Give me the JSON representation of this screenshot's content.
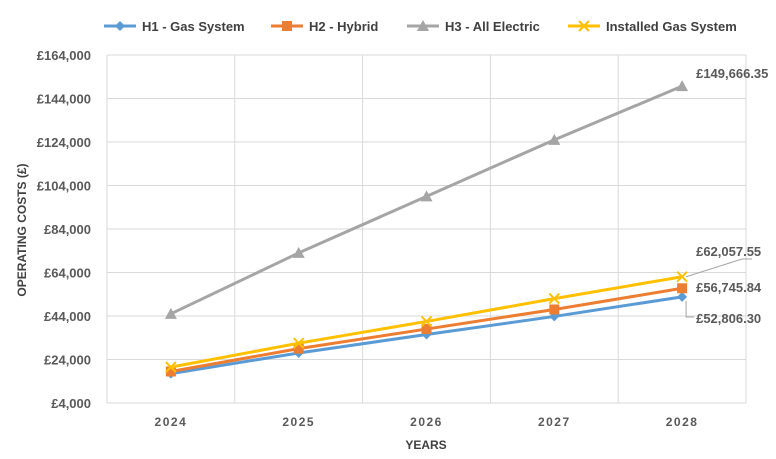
{
  "chart_data": {
    "type": "line",
    "title": "",
    "xlabel": "YEARS",
    "ylabel": "OPERATING COSTS (£)",
    "categories": [
      "2024",
      "2025",
      "2026",
      "2027",
      "2028"
    ],
    "yticks": [
      "£4,000",
      "£24,000",
      "£44,000",
      "£64,000",
      "£84,000",
      "£104,000",
      "£124,000",
      "£144,000",
      "£164,000"
    ],
    "ylim": [
      4000,
      164000
    ],
    "grid": true,
    "legend_position": "top",
    "series": [
      {
        "name": "H1 - Gas System",
        "color": "#5B9BD5",
        "marker": "diamond",
        "values": [
          17500,
          27000,
          35500,
          43800,
          52806.3
        ],
        "end_label": "£52,806.30"
      },
      {
        "name": "H2 - Hybrid",
        "color": "#ED7D31",
        "marker": "square",
        "values": [
          18500,
          29000,
          38000,
          47000,
          56745.84
        ],
        "end_label": "£56,745.84"
      },
      {
        "name": "H3 - All Electric",
        "color": "#A5A5A5",
        "marker": "triangle",
        "values": [
          45000,
          73000,
          99000,
          125000,
          149666.35
        ],
        "end_label": "£149,666.35"
      },
      {
        "name": "Installed Gas System",
        "color": "#FFC000",
        "marker": "x",
        "values": [
          20500,
          31500,
          41500,
          52000,
          62057.55
        ],
        "end_label": "£62,057.55"
      }
    ]
  }
}
